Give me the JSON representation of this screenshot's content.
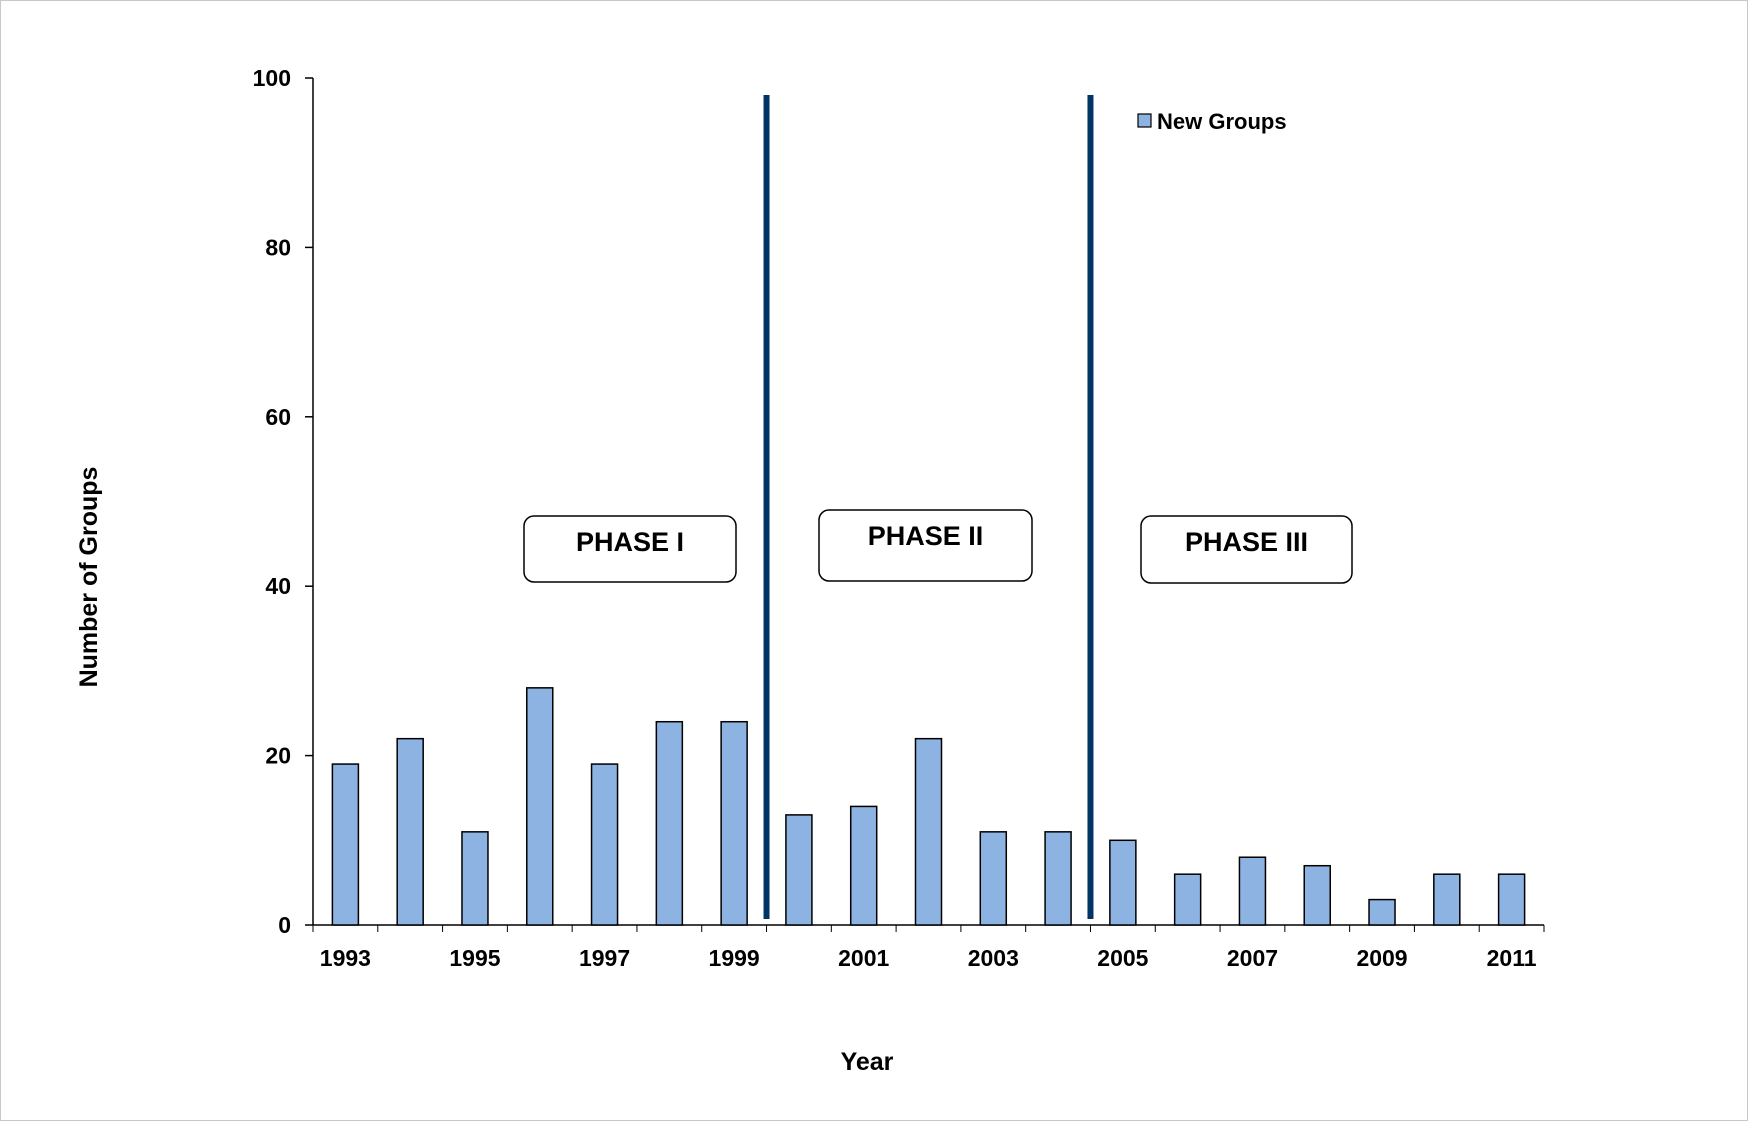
{
  "chart_data": {
    "type": "bar",
    "title": "",
    "xlabel": "Year",
    "ylabel": "Number of Groups",
    "ylim": [
      0,
      100
    ],
    "y_ticks": [
      0,
      20,
      40,
      60,
      80,
      100
    ],
    "categories": [
      1993,
      1994,
      1995,
      1996,
      1997,
      1998,
      1999,
      2000,
      2001,
      2002,
      2003,
      2004,
      2005,
      2006,
      2007,
      2008,
      2009,
      2010,
      2011
    ],
    "x_tick_labels": [
      "1993",
      "1995",
      "1997",
      "1999",
      "2001",
      "2003",
      "2005",
      "2007",
      "2009",
      "2011"
    ],
    "series": [
      {
        "name": "New Groups",
        "color": "#8DB3E2",
        "values": [
          19,
          22,
          11,
          28,
          19,
          24,
          24,
          13,
          14,
          22,
          11,
          11,
          10,
          6,
          8,
          7,
          3,
          6,
          6
        ]
      }
    ],
    "legend": {
      "position": "top-right-inside",
      "label": "New Groups"
    },
    "grid": false,
    "phase_dividers": {
      "color": "#003366",
      "after_category_index": [
        6,
        11
      ]
    },
    "phase_labels": [
      "PHASE I",
      "PHASE II",
      "PHASE III"
    ]
  }
}
